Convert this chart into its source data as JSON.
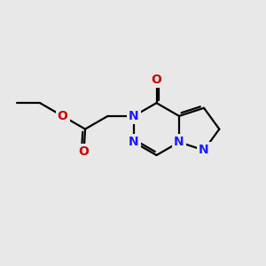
{
  "bg_color": "#e8e8e8",
  "bond_color": "#000000",
  "N_color": "#1a1aff",
  "O_color": "#cc0000",
  "bond_width": 1.6,
  "font_size_atom": 10,
  "fig_width": 3.0,
  "fig_height": 3.0,
  "dpi": 100,
  "xlim": [
    0,
    10
  ],
  "ylim": [
    0,
    10
  ]
}
